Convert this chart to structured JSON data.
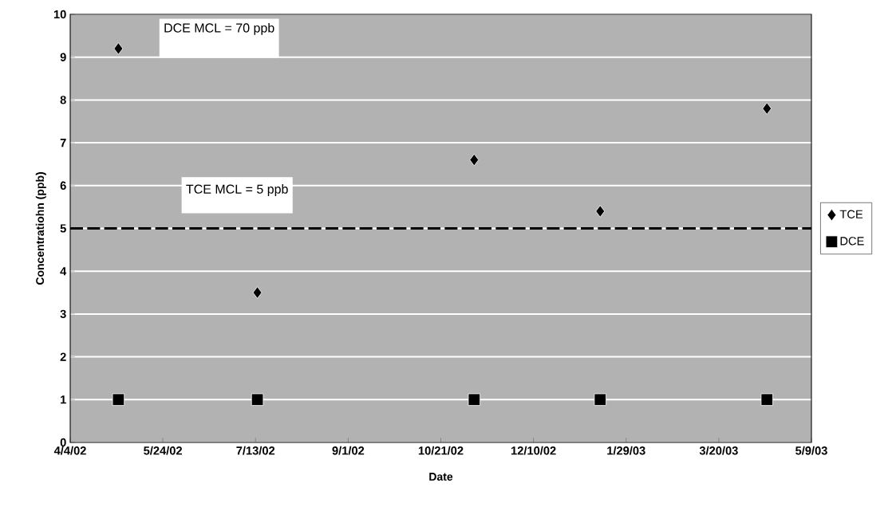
{
  "chart_data": {
    "type": "scatter",
    "xlabel": "Date",
    "ylabel": "Concentratiohn (ppb)",
    "x": [
      "2002-04-30",
      "2002-07-14",
      "2002-11-08",
      "2003-01-15",
      "2003-04-15"
    ],
    "series": [
      {
        "name": "TCE",
        "color": "#000000",
        "marker": "diamond",
        "values": [
          9.2,
          3.5,
          6.6,
          5.4,
          7.8
        ]
      },
      {
        "name": "DCE",
        "color": "#000000",
        "marker": "square",
        "values": [
          1,
          1,
          1,
          1,
          1
        ]
      }
    ],
    "xlim": [
      "2002-04-04",
      "2003-05-09"
    ],
    "xticks": [
      {
        "value": "2002-04-04",
        "label": "4/4/02"
      },
      {
        "value": "2002-05-24",
        "label": "5/24/02"
      },
      {
        "value": "2002-07-13",
        "label": "7/13/02"
      },
      {
        "value": "2002-09-01",
        "label": "9/1/02"
      },
      {
        "value": "2002-10-21",
        "label": "10/21/02"
      },
      {
        "value": "2002-12-10",
        "label": "12/10/02"
      },
      {
        "value": "2003-01-29",
        "label": "1/29/03"
      },
      {
        "value": "2003-03-20",
        "label": "3/20/03"
      },
      {
        "value": "2003-05-09",
        "label": "5/9/03"
      }
    ],
    "ylim": [
      0,
      10
    ],
    "yticks": [
      0,
      1,
      2,
      3,
      4,
      5,
      6,
      7,
      8,
      9,
      10
    ],
    "ref_lines": [
      {
        "axis": "y",
        "value": 5,
        "label": "TCE MCL = 5 ppb",
        "color": "#000000",
        "line_style": "dashed"
      }
    ],
    "annotations": [
      "DCE MCL = 70 ppb"
    ],
    "grid": "y",
    "legend": "right"
  }
}
